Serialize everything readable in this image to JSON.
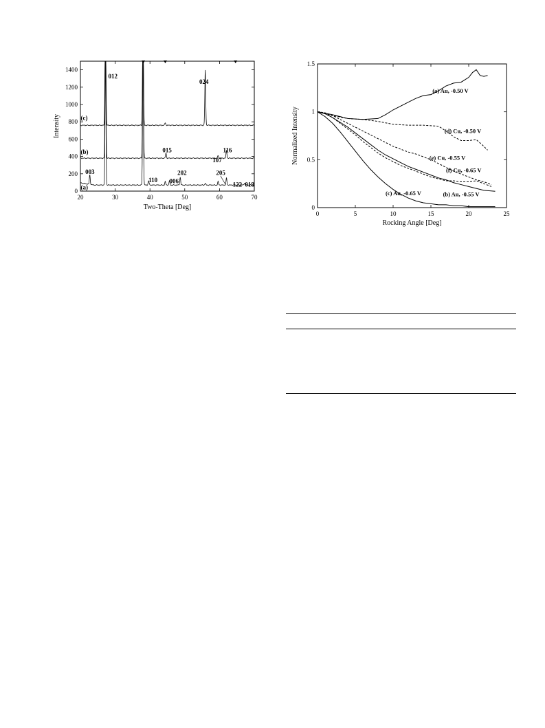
{
  "chart_data": [
    {
      "type": "line",
      "title": "",
      "xlabel": "Two-Theta [Deg]",
      "ylabel": "Intensity",
      "xlim": [
        20,
        70
      ],
      "ylim": [
        0,
        1500
      ],
      "xticks": [
        20,
        30,
        40,
        50,
        60,
        70
      ],
      "yticks": [
        0,
        200,
        400,
        600,
        800,
        1000,
        1200,
        1400
      ],
      "grid": false,
      "markers_top": [
        38.1,
        44.4,
        64.6
      ],
      "series": [
        {
          "name": "(a)",
          "baseline": 70
        },
        {
          "name": "(b)",
          "baseline": 380
        },
        {
          "name": "(c)",
          "baseline": 760
        }
      ],
      "peaks": [
        {
          "series": 0,
          "x": 22.7,
          "height": 110
        },
        {
          "series": 0,
          "x": 27.2,
          "height": 1450
        },
        {
          "series": 0,
          "x": 38.0,
          "height": 1450
        },
        {
          "series": 0,
          "x": 39.6,
          "height": 50
        },
        {
          "series": 0,
          "x": 44.4,
          "height": 40
        },
        {
          "series": 0,
          "x": 45.6,
          "height": 50
        },
        {
          "series": 0,
          "x": 48.7,
          "height": 90
        },
        {
          "series": 0,
          "x": 55.9,
          "height": 20
        },
        {
          "series": 0,
          "x": 59.6,
          "height": 40
        },
        {
          "series": 0,
          "x": 62.0,
          "height": 80
        },
        {
          "series": 0,
          "x": 67.2,
          "height": 25
        },
        {
          "series": 1,
          "x": 27.2,
          "height": 1450
        },
        {
          "series": 1,
          "x": 38.0,
          "height": 1450
        },
        {
          "series": 1,
          "x": 44.6,
          "height": 60
        },
        {
          "series": 1,
          "x": 59.6,
          "height": 30
        },
        {
          "series": 1,
          "x": 62.0,
          "height": 90
        },
        {
          "series": 2,
          "x": 27.2,
          "height": 1450
        },
        {
          "series": 2,
          "x": 38.0,
          "height": 1450
        },
        {
          "series": 2,
          "x": 44.4,
          "height": 30
        },
        {
          "series": 2,
          "x": 55.9,
          "height": 640
        }
      ],
      "annotations": [
        {
          "text": "012",
          "x": 28.0,
          "y": 1300
        },
        {
          "text": "024",
          "x": 54.2,
          "y": 1240
        },
        {
          "text": "015",
          "x": 43.6,
          "y": 450
        },
        {
          "text": "116",
          "x": 61.0,
          "y": 450
        },
        {
          "text": "107",
          "x": 58.0,
          "y": 335
        },
        {
          "text": "003",
          "x": 21.4,
          "y": 200
        },
        {
          "text": "202",
          "x": 47.9,
          "y": 185
        },
        {
          "text": "205",
          "x": 59.0,
          "y": 185
        },
        {
          "text": "110",
          "x": 39.6,
          "y": 105
        },
        {
          "text": "006",
          "x": 45.6,
          "y": 90
        },
        {
          "text": "122",
          "x": 63.8,
          "y": 50
        },
        {
          "text": "018",
          "x": 67.3,
          "y": 50
        },
        {
          "text": "(c)",
          "x": 20.1,
          "y": 820
        },
        {
          "text": "(b)",
          "x": 20.1,
          "y": 430
        },
        {
          "text": "(a)",
          "x": 20.1,
          "y": 20
        }
      ]
    },
    {
      "type": "line",
      "title": "",
      "xlabel": "Rocking Angle [Deg]",
      "ylabel": "Normalized Intensity",
      "xlim": [
        0,
        25
      ],
      "ylim": [
        0,
        1.5
      ],
      "xticks": [
        0,
        5,
        10,
        15,
        20,
        25
      ],
      "yticks": [
        0,
        0.5,
        1,
        1.5
      ],
      "grid": false,
      "series": [
        {
          "name": "(a) Au, -0.50 V",
          "style": "solid",
          "x": [
            0,
            2,
            4,
            6,
            8,
            9,
            10,
            11,
            12,
            13,
            14,
            15,
            16,
            17,
            18,
            19,
            20,
            20.5,
            21,
            21.5,
            22,
            22.5
          ],
          "y": [
            1.0,
            0.97,
            0.93,
            0.92,
            0.93,
            0.97,
            1.02,
            1.06,
            1.1,
            1.14,
            1.17,
            1.18,
            1.22,
            1.27,
            1.3,
            1.31,
            1.36,
            1.41,
            1.44,
            1.38,
            1.37,
            1.38
          ]
        },
        {
          "name": "(b) Au, -0.55 V",
          "style": "solid",
          "x": [
            0,
            1,
            2,
            3,
            4,
            5,
            6,
            7,
            8,
            9,
            10,
            11,
            12,
            13,
            14,
            15,
            16,
            17,
            18,
            19,
            20,
            21,
            22,
            23.5
          ],
          "y": [
            1.0,
            0.98,
            0.94,
            0.89,
            0.84,
            0.78,
            0.72,
            0.66,
            0.6,
            0.55,
            0.51,
            0.47,
            0.43,
            0.4,
            0.37,
            0.34,
            0.31,
            0.29,
            0.26,
            0.24,
            0.22,
            0.2,
            0.18,
            0.17
          ]
        },
        {
          "name": "(c) Au, -0.65 V",
          "style": "solid",
          "x": [
            0,
            1,
            2,
            3,
            4,
            5,
            6,
            7,
            8,
            9,
            10,
            11,
            12,
            13,
            14,
            15,
            16,
            17,
            18,
            19,
            20,
            21,
            22,
            23.5
          ],
          "y": [
            1.0,
            0.95,
            0.88,
            0.79,
            0.69,
            0.59,
            0.49,
            0.4,
            0.32,
            0.25,
            0.19,
            0.14,
            0.1,
            0.07,
            0.05,
            0.04,
            0.03,
            0.03,
            0.02,
            0.02,
            0.01,
            0.01,
            0.01,
            0.01
          ]
        },
        {
          "name": "(d) Cu, -0.50 V",
          "style": "dashed",
          "x": [
            0,
            2,
            4,
            6,
            8,
            10,
            12,
            14,
            16,
            17,
            18,
            19,
            20,
            21,
            22,
            22.5
          ],
          "y": [
            1.0,
            0.96,
            0.93,
            0.92,
            0.9,
            0.87,
            0.86,
            0.86,
            0.85,
            0.8,
            0.74,
            0.7,
            0.7,
            0.71,
            0.64,
            0.6
          ]
        },
        {
          "name": "(e) Cu, -0.55 V",
          "style": "dashed",
          "x": [
            0,
            1,
            2,
            3,
            4,
            5,
            6,
            7,
            8,
            9,
            10,
            11,
            12,
            13,
            14,
            15,
            16,
            17,
            18,
            19,
            20,
            21,
            22,
            23
          ],
          "y": [
            1.0,
            0.99,
            0.96,
            0.92,
            0.88,
            0.84,
            0.8,
            0.76,
            0.72,
            0.68,
            0.64,
            0.61,
            0.58,
            0.56,
            0.53,
            0.5,
            0.46,
            0.42,
            0.38,
            0.35,
            0.32,
            0.29,
            0.27,
            0.24
          ]
        },
        {
          "name": "(f) Cu, -0.65 V",
          "style": "dashed",
          "x": [
            0,
            1,
            2,
            3,
            4,
            5,
            6,
            7,
            8,
            9,
            10,
            11,
            12,
            13,
            14,
            15,
            16,
            17,
            18,
            19,
            20,
            21,
            22,
            23
          ],
          "y": [
            1.0,
            0.98,
            0.94,
            0.88,
            0.82,
            0.76,
            0.69,
            0.63,
            0.57,
            0.52,
            0.48,
            0.44,
            0.41,
            0.38,
            0.35,
            0.32,
            0.3,
            0.28,
            0.28,
            0.27,
            0.27,
            0.28,
            0.25,
            0.22
          ]
        }
      ],
      "labels": [
        {
          "text": "(a) Au, -0.50 V",
          "x": 15.2,
          "y": 1.2
        },
        {
          "text": "(d) Cu, -0.50 V",
          "x": 16.8,
          "y": 0.78
        },
        {
          "text": "(e) Cu, -0.55 V",
          "x": 14.8,
          "y": 0.5
        },
        {
          "text": "(f) Cu, -0.65 V",
          "x": 17.0,
          "y": 0.37
        },
        {
          "text": "(c) Au, -0.65 V",
          "x": 9.0,
          "y": 0.13
        },
        {
          "text": "(b) Au, -0.55 V",
          "x": 16.6,
          "y": 0.12
        }
      ]
    }
  ]
}
